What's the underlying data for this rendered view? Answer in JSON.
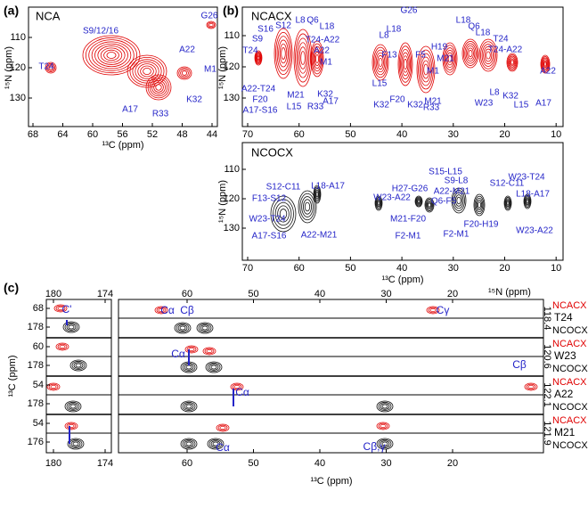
{
  "panel_a": {
    "label": "(a)",
    "experiment": "NCA",
    "xticks": [
      68,
      64,
      60,
      56,
      52,
      48,
      44
    ],
    "yticks": [
      110,
      120,
      130
    ],
    "xlabel": "¹³C (ppm)",
    "ylabel": "¹⁵N (ppm)",
    "peaks": [
      "T24",
      "S9/12/16",
      "G26",
      "A22",
      "M1",
      "K32",
      "A17",
      "R33"
    ]
  },
  "panel_b": {
    "label": "(b)",
    "top": {
      "experiment": "NCACX",
      "xticks": [
        70,
        60,
        50,
        40,
        30,
        20,
        10
      ],
      "yticks": [
        110,
        120,
        130
      ],
      "ylabel": "¹⁵N (ppm)",
      "peaks": [
        "T24",
        "S9",
        "S16",
        "S12",
        "L8",
        "Q6",
        "L18",
        "G26",
        "T24-A22",
        "A22",
        "M1",
        "K32",
        "A17",
        "R33",
        "L15",
        "M21",
        "A17-S16",
        "F20",
        "A22-T24",
        "L18",
        "L8",
        "F13",
        "F5",
        "H19",
        "M21",
        "L18",
        "Q6",
        "L18",
        "T24",
        "T24-A22",
        "A22",
        "A17",
        "L15",
        "K32",
        "L8",
        "W23",
        "M21",
        "R33",
        "K32",
        "M1",
        "F20",
        "L15",
        "K32"
      ]
    },
    "bottom": {
      "experiment": "NCOCX",
      "xticks": [
        70,
        60,
        50,
        40,
        30,
        20,
        10
      ],
      "yticks": [
        110,
        120,
        130
      ],
      "ylabel": "¹⁵N (ppm)",
      "xlabel": "¹³C (ppm)",
      "peaks": [
        "S12-C11",
        "F13-S12",
        "L18-A17",
        "H27-G26",
        "S15-L15",
        "S9-L8",
        "A22-M21",
        "Q6-F5",
        "S12-C11",
        "W23-T24",
        "L18-A17",
        "W23-A22",
        "W23-T24",
        "A17-S16",
        "A22-M21",
        "M21-F20",
        "F2-M1",
        "F2-M1",
        "F20-H19",
        "W23-A22"
      ]
    }
  },
  "panel_c": {
    "label": "(c)",
    "n_axis_label": "¹⁵N (ppm)",
    "xlabel": "¹³C (ppm)",
    "ylabel": "¹³C (ppm)",
    "top_axis_left": [
      180,
      174
    ],
    "top_axis_right": [
      60,
      50,
      40,
      30,
      20
    ],
    "bottom_axis_left": [
      180,
      174
    ],
    "bottom_axis_right": [
      60,
      50,
      40,
      30,
      20
    ],
    "rows": [
      {
        "residue": "T24",
        "n_shift": 118.4,
        "left_ticks": [
          68,
          178
        ],
        "experiments": [
          "NCACX",
          "NCOCX"
        ],
        "annotations": [
          "C'",
          "Cα",
          "Cβ",
          "Cγ"
        ]
      },
      {
        "residue": "W23",
        "n_shift": 120.6,
        "left_ticks": [
          60,
          178
        ],
        "experiments": [
          "NCACX",
          "NCOCX"
        ],
        "annotations": [
          "Cα",
          "Cβ"
        ]
      },
      {
        "residue": "A22",
        "n_shift": 122.1,
        "left_ticks": [
          54,
          178
        ],
        "experiments": [
          "NCACX",
          "NCOCX"
        ],
        "annotations": [
          "Cα"
        ]
      },
      {
        "residue": "M21",
        "n_shift": 121.9,
        "left_ticks": [
          54,
          176
        ],
        "experiments": [
          "NCACX",
          "NCOCX"
        ],
        "annotations": [
          "Cα",
          "Cβ,γ"
        ]
      }
    ]
  }
}
